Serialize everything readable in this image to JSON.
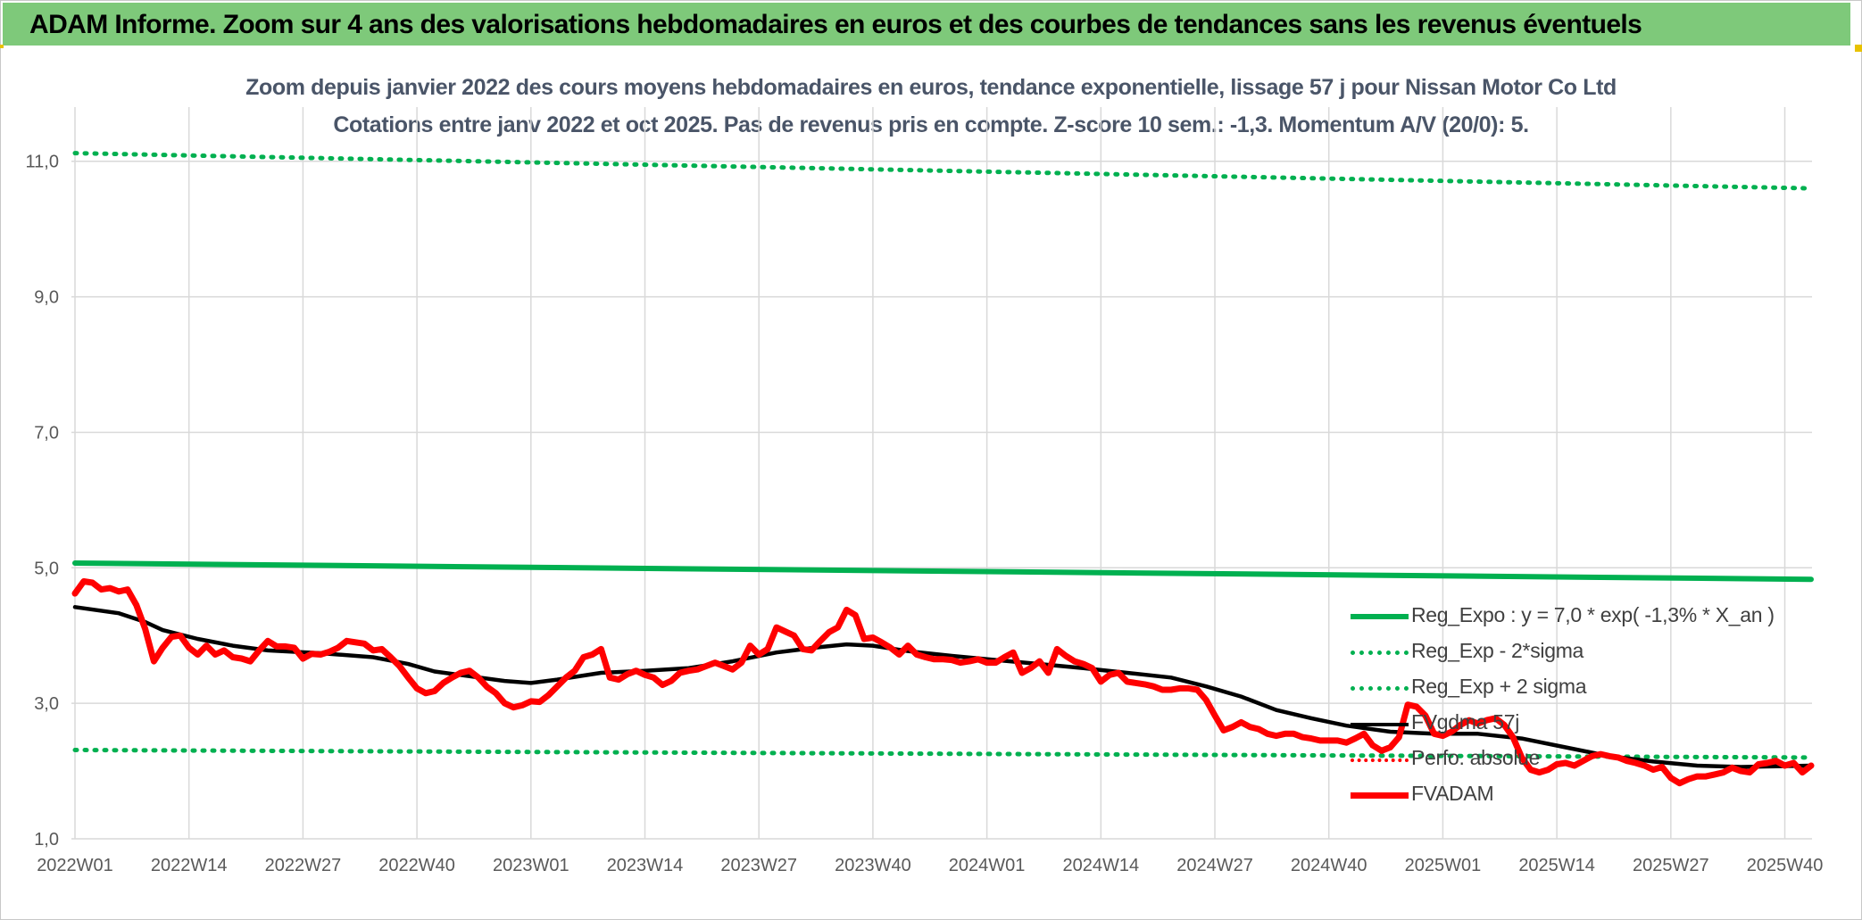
{
  "header": {
    "title": "ADAM Informe. Zoom sur 4 ans des valorisations hebdomadaires en euros et des courbes de tendances sans les revenus éventuels"
  },
  "chart_data": {
    "type": "line",
    "title": "Zoom depuis janvier 2022 des cours moyens hebdomadaires en euros, tendance exponentielle, lissage 57 j pour Nissan Motor Co Ltd",
    "subtitle": "Cotations entre janv 2022 et oct 2025. Pas de revenus pris en compte. Z-score 10 sem.: -1,3. Momentum A/V (20/0): 5.",
    "xlabel": "",
    "ylabel": "",
    "ylim": [
      1.0,
      11.8
    ],
    "y_ticks": [
      "1,0",
      "3,0",
      "5,0",
      "7,0",
      "9,0",
      "11,0"
    ],
    "y_tick_values": [
      1,
      3,
      5,
      7,
      9,
      11
    ],
    "x_ticks": [
      "2022W01",
      "2022W14",
      "2022W27",
      "2022W40",
      "2023W01",
      "2023W14",
      "2023W27",
      "2023W40",
      "2024W01",
      "2024W14",
      "2024W27",
      "2024W40",
      "2025W01",
      "2025W14",
      "2025W27",
      "2025W40"
    ],
    "x_range_weeks": [
      0,
      198
    ],
    "grid": true,
    "legend_position": "right",
    "series": [
      {
        "name": "Reg_Expo : y = 7,0 * exp( -1,3% *  X_an )",
        "style": "solid",
        "color": "#00b050",
        "points": [
          [
            0,
            5.07
          ],
          [
            198,
            4.83
          ]
        ]
      },
      {
        "name": "Reg_Exp - 2*sigma",
        "style": "dotted",
        "color": "#00b050",
        "points": [
          [
            0,
            2.31
          ],
          [
            198,
            2.2
          ]
        ]
      },
      {
        "name": "Reg_Exp + 2 sigma",
        "style": "dotted",
        "color": "#00b050",
        "points": [
          [
            0,
            11.12
          ],
          [
            198,
            10.6
          ]
        ]
      },
      {
        "name": "FVgdma 57j",
        "style": "solid",
        "color": "#000000",
        "points": [
          [
            0,
            4.42
          ],
          [
            5,
            4.33
          ],
          [
            8,
            4.2
          ],
          [
            10,
            4.08
          ],
          [
            14,
            3.95
          ],
          [
            18,
            3.85
          ],
          [
            22,
            3.78
          ],
          [
            28,
            3.74
          ],
          [
            34,
            3.68
          ],
          [
            38,
            3.58
          ],
          [
            41,
            3.47
          ],
          [
            45,
            3.4
          ],
          [
            49,
            3.33
          ],
          [
            52,
            3.3
          ],
          [
            55,
            3.35
          ],
          [
            60,
            3.45
          ],
          [
            65,
            3.48
          ],
          [
            70,
            3.52
          ],
          [
            75,
            3.62
          ],
          [
            80,
            3.75
          ],
          [
            85,
            3.83
          ],
          [
            88,
            3.87
          ],
          [
            91,
            3.85
          ],
          [
            95,
            3.77
          ],
          [
            100,
            3.7
          ],
          [
            105,
            3.64
          ],
          [
            110,
            3.58
          ],
          [
            115,
            3.52
          ],
          [
            120,
            3.45
          ],
          [
            125,
            3.38
          ],
          [
            129,
            3.25
          ],
          [
            133,
            3.1
          ],
          [
            137,
            2.9
          ],
          [
            141,
            2.78
          ],
          [
            145,
            2.67
          ],
          [
            150,
            2.58
          ],
          [
            155,
            2.55
          ],
          [
            160,
            2.55
          ],
          [
            165,
            2.48
          ],
          [
            170,
            2.35
          ],
          [
            175,
            2.22
          ],
          [
            180,
            2.14
          ],
          [
            185,
            2.08
          ],
          [
            190,
            2.06
          ],
          [
            198,
            2.08
          ]
        ]
      },
      {
        "name": "Perfo. absolue",
        "style": "dotted",
        "color": "#ff0000",
        "points": []
      },
      {
        "name": "FVADAM",
        "style": "solid-thick",
        "color": "#ff0000",
        "points": [
          [
            0,
            4.62
          ],
          [
            1,
            4.8
          ],
          [
            2,
            4.78
          ],
          [
            3,
            4.68
          ],
          [
            4,
            4.7
          ],
          [
            5,
            4.65
          ],
          [
            6,
            4.68
          ],
          [
            7,
            4.45
          ],
          [
            8,
            4.1
          ],
          [
            9,
            3.62
          ],
          [
            10,
            3.82
          ],
          [
            11,
            3.98
          ],
          [
            12,
            4.0
          ],
          [
            13,
            3.82
          ],
          [
            14,
            3.72
          ],
          [
            15,
            3.85
          ],
          [
            16,
            3.72
          ],
          [
            17,
            3.78
          ],
          [
            18,
            3.68
          ],
          [
            19,
            3.66
          ],
          [
            20,
            3.62
          ],
          [
            21,
            3.78
          ],
          [
            22,
            3.92
          ],
          [
            23,
            3.84
          ],
          [
            24,
            3.84
          ],
          [
            25,
            3.82
          ],
          [
            26,
            3.66
          ],
          [
            27,
            3.73
          ],
          [
            28,
            3.72
          ],
          [
            29,
            3.76
          ],
          [
            30,
            3.82
          ],
          [
            31,
            3.92
          ],
          [
            32,
            3.9
          ],
          [
            33,
            3.88
          ],
          [
            34,
            3.78
          ],
          [
            35,
            3.8
          ],
          [
            36,
            3.68
          ],
          [
            37,
            3.55
          ],
          [
            38,
            3.38
          ],
          [
            39,
            3.22
          ],
          [
            40,
            3.15
          ],
          [
            41,
            3.18
          ],
          [
            42,
            3.3
          ],
          [
            43,
            3.38
          ],
          [
            44,
            3.45
          ],
          [
            45,
            3.48
          ],
          [
            46,
            3.38
          ],
          [
            47,
            3.24
          ],
          [
            48,
            3.15
          ],
          [
            49,
            3.0
          ],
          [
            50,
            2.94
          ],
          [
            51,
            2.97
          ],
          [
            52,
            3.03
          ],
          [
            53,
            3.02
          ],
          [
            54,
            3.12
          ],
          [
            55,
            3.25
          ],
          [
            56,
            3.38
          ],
          [
            57,
            3.48
          ],
          [
            58,
            3.68
          ],
          [
            59,
            3.72
          ],
          [
            60,
            3.8
          ],
          [
            61,
            3.38
          ],
          [
            62,
            3.35
          ],
          [
            63,
            3.43
          ],
          [
            64,
            3.48
          ],
          [
            65,
            3.42
          ],
          [
            66,
            3.38
          ],
          [
            67,
            3.27
          ],
          [
            68,
            3.33
          ],
          [
            69,
            3.45
          ],
          [
            70,
            3.48
          ],
          [
            71,
            3.5
          ],
          [
            72,
            3.55
          ],
          [
            73,
            3.6
          ],
          [
            74,
            3.55
          ],
          [
            75,
            3.5
          ],
          [
            76,
            3.6
          ],
          [
            77,
            3.85
          ],
          [
            78,
            3.72
          ],
          [
            79,
            3.8
          ],
          [
            80,
            4.12
          ],
          [
            81,
            4.06
          ],
          [
            82,
            4.0
          ],
          [
            83,
            3.8
          ],
          [
            84,
            3.78
          ],
          [
            85,
            3.92
          ],
          [
            86,
            4.05
          ],
          [
            87,
            4.12
          ],
          [
            88,
            4.38
          ],
          [
            89,
            4.3
          ],
          [
            90,
            3.95
          ],
          [
            91,
            3.97
          ],
          [
            92,
            3.9
          ],
          [
            93,
            3.82
          ],
          [
            94,
            3.72
          ],
          [
            95,
            3.85
          ],
          [
            96,
            3.72
          ],
          [
            97,
            3.68
          ],
          [
            98,
            3.65
          ],
          [
            99,
            3.65
          ],
          [
            100,
            3.64
          ],
          [
            101,
            3.6
          ],
          [
            102,
            3.62
          ],
          [
            103,
            3.65
          ],
          [
            104,
            3.6
          ],
          [
            105,
            3.6
          ],
          [
            106,
            3.68
          ],
          [
            107,
            3.75
          ],
          [
            108,
            3.45
          ],
          [
            109,
            3.52
          ],
          [
            110,
            3.62
          ],
          [
            111,
            3.45
          ],
          [
            112,
            3.8
          ],
          [
            113,
            3.7
          ],
          [
            114,
            3.62
          ],
          [
            115,
            3.58
          ],
          [
            116,
            3.52
          ],
          [
            117,
            3.32
          ],
          [
            118,
            3.42
          ],
          [
            119,
            3.45
          ],
          [
            120,
            3.32
          ],
          [
            121,
            3.3
          ],
          [
            122,
            3.28
          ],
          [
            123,
            3.25
          ],
          [
            124,
            3.2
          ],
          [
            125,
            3.2
          ],
          [
            126,
            3.22
          ],
          [
            127,
            3.22
          ],
          [
            128,
            3.2
          ],
          [
            129,
            3.05
          ],
          [
            130,
            2.82
          ],
          [
            131,
            2.6
          ],
          [
            132,
            2.65
          ],
          [
            133,
            2.72
          ],
          [
            134,
            2.65
          ],
          [
            135,
            2.62
          ],
          [
            136,
            2.55
          ],
          [
            137,
            2.52
          ],
          [
            138,
            2.55
          ],
          [
            139,
            2.55
          ],
          [
            140,
            2.5
          ],
          [
            141,
            2.48
          ],
          [
            142,
            2.45
          ],
          [
            143,
            2.45
          ],
          [
            144,
            2.45
          ],
          [
            145,
            2.42
          ],
          [
            146,
            2.48
          ],
          [
            147,
            2.55
          ],
          [
            148,
            2.38
          ],
          [
            149,
            2.3
          ],
          [
            150,
            2.35
          ],
          [
            151,
            2.5
          ],
          [
            152,
            2.98
          ],
          [
            153,
            2.95
          ],
          [
            154,
            2.82
          ],
          [
            155,
            2.55
          ],
          [
            156,
            2.52
          ],
          [
            157,
            2.58
          ],
          [
            158,
            2.68
          ],
          [
            159,
            2.75
          ],
          [
            160,
            2.7
          ],
          [
            161,
            2.75
          ],
          [
            162,
            2.78
          ],
          [
            163,
            2.68
          ],
          [
            164,
            2.5
          ],
          [
            165,
            2.2
          ],
          [
            166,
            2.02
          ],
          [
            167,
            1.98
          ],
          [
            168,
            2.02
          ],
          [
            169,
            2.1
          ],
          [
            170,
            2.12
          ],
          [
            171,
            2.08
          ],
          [
            172,
            2.15
          ],
          [
            173,
            2.22
          ],
          [
            174,
            2.25
          ],
          [
            175,
            2.22
          ],
          [
            176,
            2.2
          ],
          [
            177,
            2.15
          ],
          [
            178,
            2.12
          ],
          [
            179,
            2.08
          ],
          [
            180,
            2.02
          ],
          [
            181,
            2.06
          ],
          [
            182,
            1.9
          ],
          [
            183,
            1.82
          ],
          [
            184,
            1.88
          ],
          [
            185,
            1.92
          ],
          [
            186,
            1.92
          ],
          [
            187,
            1.95
          ],
          [
            188,
            1.98
          ],
          [
            189,
            2.05
          ],
          [
            190,
            2.0
          ],
          [
            191,
            1.98
          ],
          [
            192,
            2.1
          ],
          [
            193,
            2.12
          ],
          [
            194,
            2.15
          ],
          [
            195,
            2.08
          ],
          [
            196,
            2.12
          ],
          [
            197,
            1.98
          ],
          [
            198,
            2.08
          ]
        ]
      }
    ]
  }
}
